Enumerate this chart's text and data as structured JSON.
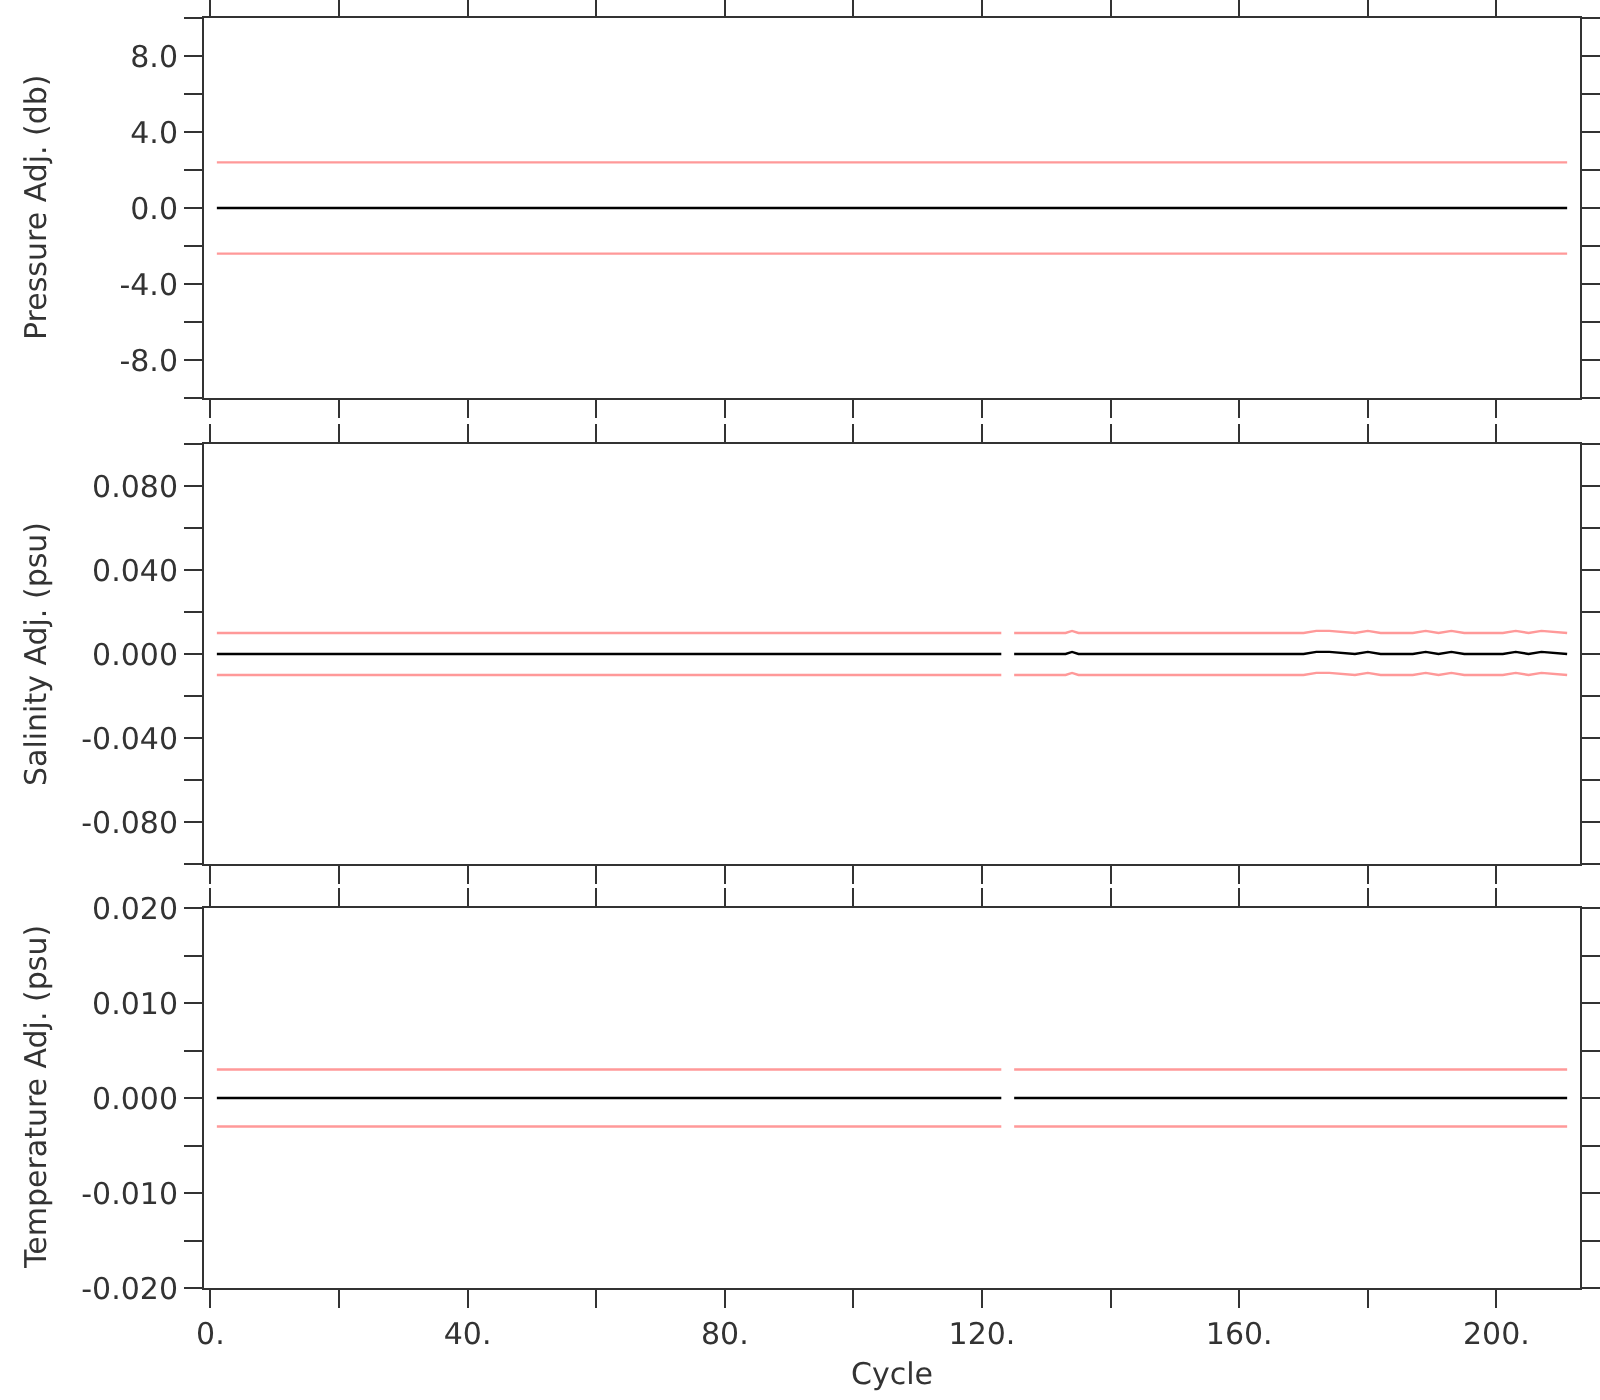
{
  "chart_data": [
    {
      "type": "line",
      "ylabel": "Pressure Adj. (db)",
      "xlim": [
        -1,
        213
      ],
      "ylim": [
        -10,
        10
      ],
      "xticks": [
        {
          "value": 0,
          "label": null
        },
        {
          "value": 20,
          "label": null
        },
        {
          "value": 40,
          "label": null
        },
        {
          "value": 60,
          "label": null
        },
        {
          "value": 80,
          "label": null
        },
        {
          "value": 100,
          "label": null
        },
        {
          "value": 120,
          "label": null
        },
        {
          "value": 140,
          "label": null
        },
        {
          "value": 160,
          "label": null
        },
        {
          "value": 180,
          "label": null
        },
        {
          "value": 200,
          "label": null
        }
      ],
      "yticks": [
        {
          "value": -10,
          "label": null
        },
        {
          "value": -8,
          "label": "-8.0"
        },
        {
          "value": -6,
          "label": null
        },
        {
          "value": -4,
          "label": "-4.0"
        },
        {
          "value": -2,
          "label": null
        },
        {
          "value": 0,
          "label": "0.0"
        },
        {
          "value": 2,
          "label": null
        },
        {
          "value": 4,
          "label": "4.0"
        },
        {
          "value": 6,
          "label": null
        },
        {
          "value": 8,
          "label": "8.0"
        },
        {
          "value": 10,
          "label": null
        }
      ],
      "tick_labels": "y",
      "grid": false,
      "marker": "none",
      "line_style": "solid",
      "x": [
        1,
        211
      ],
      "series": [
        {
          "color": "#000000",
          "values": [
            0,
            0
          ]
        },
        {
          "color": "#ff9999",
          "values": [
            2.4,
            2.4
          ]
        },
        {
          "color": "#ff9999",
          "values": [
            -2.4,
            -2.4
          ]
        }
      ]
    },
    {
      "type": "line",
      "ylabel": "Salinity Adj. (psu)",
      "xlim": [
        -1,
        213
      ],
      "ylim": [
        -0.1,
        0.1
      ],
      "xticks": [
        {
          "value": 0,
          "label": null
        },
        {
          "value": 20,
          "label": null
        },
        {
          "value": 40,
          "label": null
        },
        {
          "value": 60,
          "label": null
        },
        {
          "value": 80,
          "label": null
        },
        {
          "value": 100,
          "label": null
        },
        {
          "value": 120,
          "label": null
        },
        {
          "value": 140,
          "label": null
        },
        {
          "value": 160,
          "label": null
        },
        {
          "value": 180,
          "label": null
        },
        {
          "value": 200,
          "label": null
        }
      ],
      "yticks": [
        {
          "value": -0.1,
          "label": null
        },
        {
          "value": -0.08,
          "label": "-0.080"
        },
        {
          "value": -0.06,
          "label": null
        },
        {
          "value": -0.04,
          "label": "-0.040"
        },
        {
          "value": -0.02,
          "label": null
        },
        {
          "value": 0,
          "label": "0.000"
        },
        {
          "value": 0.02,
          "label": null
        },
        {
          "value": 0.04,
          "label": "0.040"
        },
        {
          "value": 0.06,
          "label": null
        },
        {
          "value": 0.08,
          "label": "0.080"
        },
        {
          "value": 0.1,
          "label": null
        }
      ],
      "tick_labels": "y",
      "grid": false,
      "marker": "none",
      "line_style": "solid",
      "x": [
        1,
        123,
        124,
        125,
        133,
        134,
        135,
        170,
        172,
        174,
        178,
        180,
        182,
        187,
        189,
        191,
        193,
        195,
        201,
        203,
        205,
        207,
        211
      ],
      "series": [
        {
          "color": "#000000",
          "values": [
            0,
            0,
            null,
            0,
            0,
            0.001,
            0,
            0,
            0.001,
            0.001,
            0,
            0.001,
            0,
            0,
            0.001,
            0,
            0.001,
            0,
            0,
            0.001,
            0,
            0.001,
            0
          ]
        },
        {
          "color": "#ff9999",
          "values": [
            0.01,
            0.01,
            null,
            0.01,
            0.01,
            0.011,
            0.01,
            0.01,
            0.011,
            0.011,
            0.01,
            0.011,
            0.01,
            0.01,
            0.011,
            0.01,
            0.011,
            0.01,
            0.01,
            0.011,
            0.01,
            0.011,
            0.01
          ]
        },
        {
          "color": "#ff9999",
          "values": [
            -0.01,
            -0.01,
            null,
            -0.01,
            -0.01,
            -0.009,
            -0.01,
            -0.01,
            -0.009,
            -0.009,
            -0.01,
            -0.009,
            -0.01,
            -0.01,
            -0.009,
            -0.01,
            -0.009,
            -0.01,
            -0.01,
            -0.009,
            -0.01,
            -0.009,
            -0.01
          ]
        }
      ]
    },
    {
      "type": "line",
      "ylabel": "Temperature Adj. (psu)",
      "xlabel": "Cycle",
      "xlim": [
        -1,
        213
      ],
      "ylim": [
        -0.02,
        0.02
      ],
      "xticks": [
        {
          "value": 0,
          "label": "0."
        },
        {
          "value": 20,
          "label": null
        },
        {
          "value": 40,
          "label": "40."
        },
        {
          "value": 60,
          "label": null
        },
        {
          "value": 80,
          "label": "80."
        },
        {
          "value": 100,
          "label": null
        },
        {
          "value": 120,
          "label": "120."
        },
        {
          "value": 140,
          "label": null
        },
        {
          "value": 160,
          "label": "160."
        },
        {
          "value": 180,
          "label": null
        },
        {
          "value": 200,
          "label": "200."
        }
      ],
      "yticks": [
        {
          "value": -0.02,
          "label": "-0.020"
        },
        {
          "value": -0.015,
          "label": null
        },
        {
          "value": -0.01,
          "label": "-0.010"
        },
        {
          "value": -0.005,
          "label": null
        },
        {
          "value": 0,
          "label": "0.000"
        },
        {
          "value": 0.005,
          "label": null
        },
        {
          "value": 0.01,
          "label": "0.010"
        },
        {
          "value": 0.015,
          "label": null
        },
        {
          "value": 0.02,
          "label": "0.020"
        }
      ],
      "grid": false,
      "marker": "none",
      "line_style": "solid",
      "x": [
        1,
        123,
        124,
        125,
        211
      ],
      "series": [
        {
          "color": "#000000",
          "values": [
            0,
            0,
            null,
            0,
            0
          ]
        },
        {
          "color": "#ff9999",
          "values": [
            0.003,
            0.003,
            null,
            0.003,
            0.003
          ]
        },
        {
          "color": "#ff9999",
          "values": [
            -0.003,
            -0.003,
            null,
            -0.003,
            -0.003
          ]
        }
      ]
    }
  ]
}
